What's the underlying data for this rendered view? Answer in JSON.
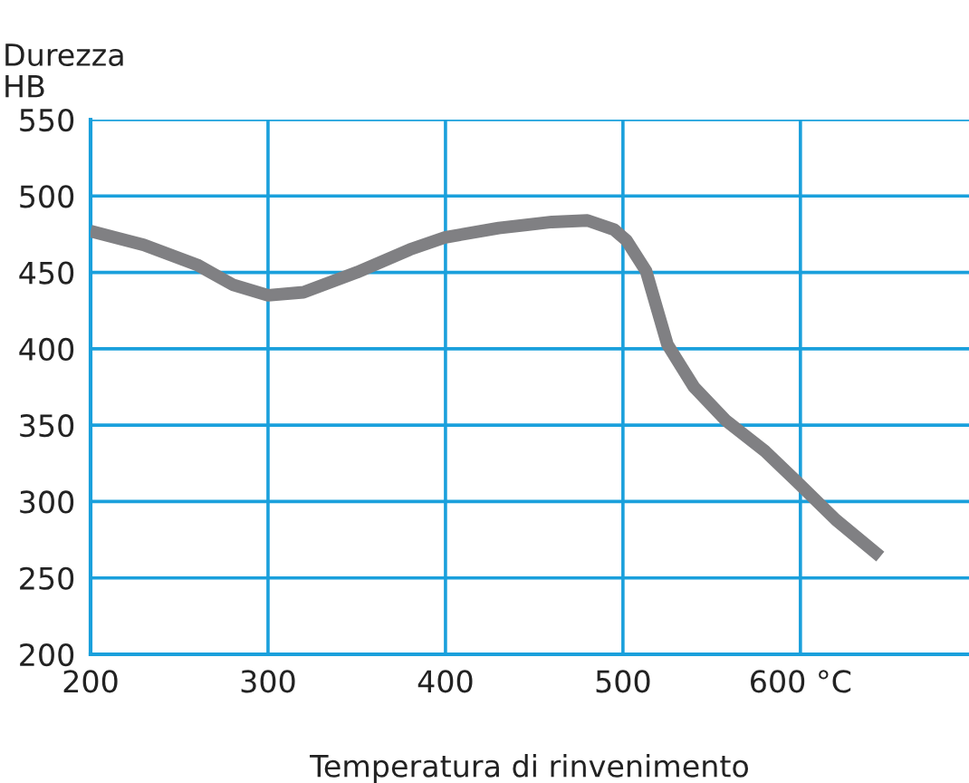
{
  "chart_data": {
    "type": "line",
    "ylabel": "Durezza\nHB",
    "xlabel": "Temperatura di rinvenimento",
    "x": [
      200,
      230,
      260,
      280,
      300,
      320,
      350,
      380,
      400,
      430,
      460,
      480,
      495,
      502,
      513,
      525,
      540,
      558,
      580,
      598,
      620,
      645
    ],
    "series": [
      {
        "color": "#808083",
        "values": [
          477,
          468,
          455,
          442,
          435,
          437,
          450,
          465,
          473,
          479,
          483,
          484,
          478,
          471,
          451,
          403,
          375,
          353,
          333,
          313,
          288,
          264
        ]
      }
    ],
    "xlim": [
      200,
      695
    ],
    "ylim": [
      200,
      550
    ],
    "xticks": [
      200,
      300,
      400,
      500,
      {
        "value": 600,
        "label": "600 °C"
      }
    ],
    "yticks": [
      200,
      250,
      300,
      350,
      400,
      450,
      500,
      550
    ],
    "grid": true,
    "marker": "none",
    "line_style": "solid"
  }
}
